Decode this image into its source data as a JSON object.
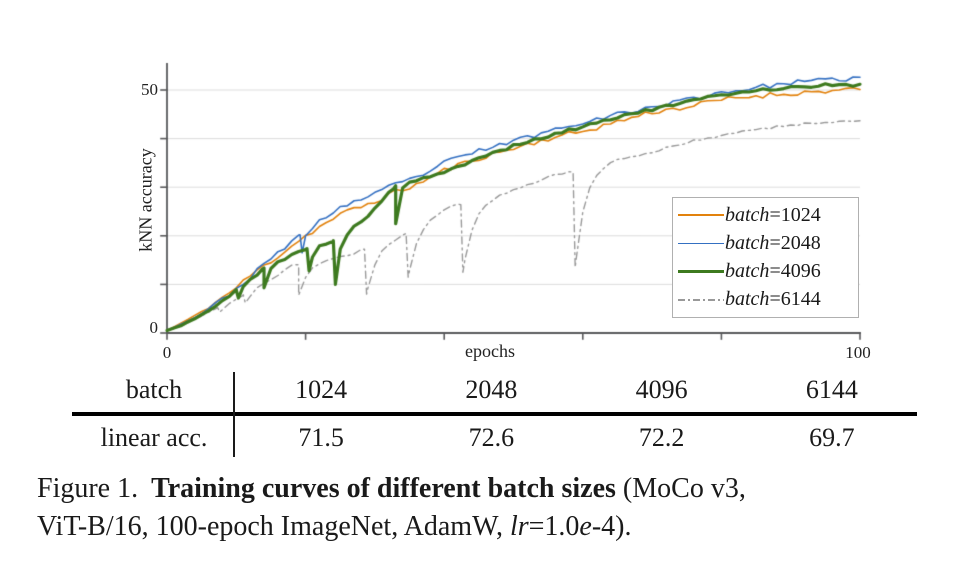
{
  "colors": {
    "axis": "#58595b",
    "gridline": "#dcdcdc",
    "text": "#1a1a1a",
    "legend_border": "#b0b0b0",
    "series_orange": "#e2820d",
    "series_blue": "#3470c2",
    "series_green": "#3d7a1f",
    "series_gray": "#999999"
  },
  "chart_data": {
    "type": "line",
    "title": "",
    "xlabel": "epochs",
    "ylabel": "kNN accuracy",
    "xlim": [
      0,
      100
    ],
    "ylim": [
      0,
      55
    ],
    "x_ticks": [
      0,
      20,
      40,
      60,
      80,
      100
    ],
    "y_ticks": [
      0,
      10,
      20,
      30,
      40,
      50
    ],
    "x_tick_labels": {
      "min": "0",
      "max": "100"
    },
    "y_tick_labels": {
      "min": "0",
      "max": "50"
    },
    "grid": "horizontal gridlines at y=10,20,30,40,50",
    "legend_position": "center-right inside plot",
    "series": [
      {
        "name": "batch=1024",
        "legend_var": "batch",
        "legend_suffix": "=1024",
        "color": "#e2820d",
        "dash": "solid",
        "line_width": 1.6,
        "jitter": 0.55,
        "seed": 11,
        "anchors": [
          [
            0,
            0.5
          ],
          [
            2,
            2
          ],
          [
            4,
            3.5
          ],
          [
            6,
            5.3
          ],
          [
            8,
            7.3
          ],
          [
            10,
            9.3
          ],
          [
            12,
            11.8
          ],
          [
            14,
            13.8
          ],
          [
            16,
            15.8
          ],
          [
            18,
            18
          ],
          [
            20,
            20
          ],
          [
            22,
            21.8
          ],
          [
            24,
            23.5
          ],
          [
            26,
            25
          ],
          [
            28,
            26
          ],
          [
            30,
            27
          ],
          [
            32,
            28.5
          ],
          [
            34,
            29.5
          ],
          [
            36,
            30.5
          ],
          [
            38,
            32
          ],
          [
            40,
            33.5
          ],
          [
            45,
            36
          ],
          [
            50,
            38
          ],
          [
            55,
            40
          ],
          [
            60,
            41.5
          ],
          [
            65,
            43.5
          ],
          [
            70,
            45.5
          ],
          [
            75,
            46.5
          ],
          [
            80,
            48
          ],
          [
            85,
            48.8
          ],
          [
            90,
            49.3
          ],
          [
            95,
            49.8
          ],
          [
            100,
            50
          ]
        ],
        "dips": []
      },
      {
        "name": "batch=2048",
        "legend_var": "batch",
        "legend_suffix": "=2048",
        "color": "#3470c2",
        "dash": "solid",
        "line_width": 1.6,
        "jitter": 0.5,
        "seed": 23,
        "anchors": [
          [
            0,
            0.5
          ],
          [
            2,
            1.8
          ],
          [
            4,
            3.2
          ],
          [
            6,
            5
          ],
          [
            8,
            7
          ],
          [
            10,
            9
          ],
          [
            12,
            11.5
          ],
          [
            14,
            14
          ],
          [
            16,
            16.5
          ],
          [
            18,
            19
          ],
          [
            20,
            21
          ],
          [
            22,
            23
          ],
          [
            24,
            25
          ],
          [
            26,
            26.5
          ],
          [
            28,
            27.5
          ],
          [
            30,
            28.5
          ],
          [
            32,
            30
          ],
          [
            34,
            31
          ],
          [
            36,
            32
          ],
          [
            38,
            33.5
          ],
          [
            40,
            35
          ],
          [
            45,
            37.5
          ],
          [
            50,
            39.5
          ],
          [
            55,
            41.5
          ],
          [
            60,
            43.5
          ],
          [
            65,
            45
          ],
          [
            70,
            46.5
          ],
          [
            75,
            48
          ],
          [
            80,
            49.5
          ],
          [
            85,
            50.5
          ],
          [
            90,
            51.5
          ],
          [
            95,
            52
          ],
          [
            100,
            52.5
          ]
        ],
        "dips": [
          [
            19.5,
            16.5
          ]
        ]
      },
      {
        "name": "batch=4096",
        "legend_var": "batch",
        "legend_suffix": "=4096",
        "color": "#3d7a1f",
        "dash": "solid",
        "line_width": 3.2,
        "jitter": 0.3,
        "seed": 5,
        "anchors": [
          [
            0,
            0.5
          ],
          [
            2,
            1.5
          ],
          [
            4,
            3
          ],
          [
            6,
            4.5
          ],
          [
            8,
            6.5
          ],
          [
            10,
            8.8
          ],
          [
            12,
            11
          ],
          [
            14,
            13.4
          ],
          [
            16,
            14.5
          ],
          [
            18,
            16
          ],
          [
            20,
            17.3
          ],
          [
            22,
            18
          ],
          [
            24,
            19
          ],
          [
            26,
            20.5
          ],
          [
            28,
            23
          ],
          [
            30,
            25.5
          ],
          [
            32,
            29
          ],
          [
            34,
            31
          ],
          [
            36,
            31.5
          ],
          [
            38,
            32
          ],
          [
            40,
            33
          ],
          [
            45,
            36
          ],
          [
            50,
            38.5
          ],
          [
            55,
            40.5
          ],
          [
            60,
            42.5
          ],
          [
            65,
            44.5
          ],
          [
            70,
            46
          ],
          [
            75,
            47.5
          ],
          [
            80,
            49
          ],
          [
            85,
            50
          ],
          [
            90,
            50.5
          ],
          [
            95,
            51
          ],
          [
            100,
            51
          ]
        ],
        "dips": [
          [
            10.3,
            7.2
          ],
          [
            14,
            9.3
          ],
          [
            20.5,
            12.8
          ],
          [
            24.3,
            10
          ],
          [
            33,
            22.5
          ]
        ]
      },
      {
        "name": "batch=6144",
        "legend_var": "batch",
        "legend_suffix": "=6144",
        "color": "#999999",
        "dash": "dashdot",
        "line_width": 1.4,
        "jitter": 0.25,
        "seed": 41,
        "anchors": [
          [
            0,
            0.5
          ],
          [
            2,
            1.4
          ],
          [
            4,
            2.8
          ],
          [
            6,
            4.2
          ],
          [
            8,
            5.8
          ],
          [
            10,
            7
          ],
          [
            12,
            8.8
          ],
          [
            14,
            10.5
          ],
          [
            16,
            12
          ],
          [
            18,
            13.8
          ],
          [
            20,
            14.5
          ],
          [
            22,
            15
          ],
          [
            24,
            15.5
          ],
          [
            26,
            16
          ],
          [
            28,
            17
          ],
          [
            30,
            18
          ],
          [
            32,
            19
          ],
          [
            34,
            20
          ],
          [
            36,
            22
          ],
          [
            38,
            24
          ],
          [
            40,
            25.5
          ],
          [
            42,
            26.5
          ],
          [
            44,
            26
          ],
          [
            46,
            27.5
          ],
          [
            48,
            28.5
          ],
          [
            50,
            29.5
          ],
          [
            52,
            30.5
          ],
          [
            54,
            31.5
          ],
          [
            56,
            32.5
          ],
          [
            58,
            33
          ],
          [
            60,
            33.5
          ],
          [
            62,
            34
          ],
          [
            64,
            35
          ],
          [
            66,
            36
          ],
          [
            68,
            36.5
          ],
          [
            70,
            37.2
          ],
          [
            72,
            38
          ],
          [
            74,
            38.8
          ],
          [
            76,
            39.5
          ],
          [
            78,
            40
          ],
          [
            80,
            40.7
          ],
          [
            82,
            41.2
          ],
          [
            84,
            41.6
          ],
          [
            86,
            42
          ],
          [
            88,
            42.4
          ],
          [
            90,
            42.8
          ],
          [
            92,
            43
          ],
          [
            94,
            43.2
          ],
          [
            96,
            43.4
          ],
          [
            98,
            43.6
          ],
          [
            100,
            43.8
          ]
        ],
        "dips": [
          [
            7.6,
            4.3
          ],
          [
            11.3,
            6.2
          ],
          [
            19,
            7.8
          ],
          [
            28.8,
            8
          ],
          [
            34.8,
            11.5
          ],
          [
            42.7,
            12.5
          ],
          [
            58.9,
            13.5
          ]
        ]
      }
    ],
    "draw_order": [
      3,
      0,
      1,
      2
    ]
  },
  "table": {
    "header": [
      "batch",
      "1024",
      "2048",
      "4096",
      "6144"
    ],
    "rows": [
      [
        "linear acc.",
        "71.5",
        "72.6",
        "72.2",
        "69.7"
      ]
    ]
  },
  "caption": {
    "label": "Figure 1.",
    "bold": "Training curves of different batch sizes",
    "paren_open": "(MoCo v3,",
    "line2_prefix": "ViT-B/16, 100-epoch ImageNet, AdamW, ",
    "lr_var": "lr",
    "lr_eq": "=1.0",
    "lr_e": "e",
    "lr_tail": "-4)."
  }
}
